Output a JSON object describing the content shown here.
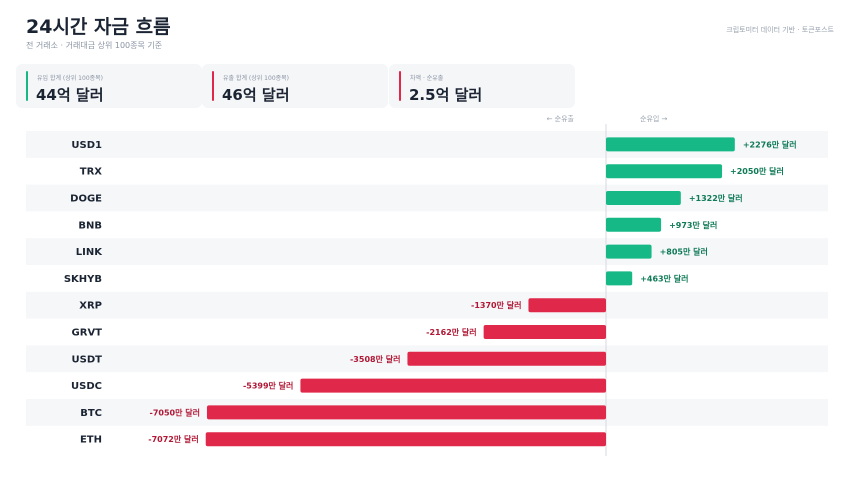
{
  "header": {
    "title": "24시간 자금 흐름",
    "subtitle": "전 거래소 · 거래대금 상위 100종목 기준",
    "source": "크립토미터 데이터 기반 · 토큰포스트"
  },
  "summary": [
    {
      "label": "유입 합계 (상위 100종목)",
      "value": "44억 달러",
      "color": "#16b885"
    },
    {
      "label": "유출 합계 (상위 100종목)",
      "value": "46억 달러",
      "color": "#e0294a"
    },
    {
      "label": "차액 · 순유출",
      "value": "2.5억 달러",
      "color": "#e0294a"
    }
  ],
  "axis": {
    "outflow_label": "← 순유출",
    "inflow_label": "순유입 →"
  },
  "colors": {
    "positive": "#16b885",
    "negative": "#e0294a",
    "positive_text": "#0f7a57",
    "negative_text": "#b01835"
  },
  "chart_data": {
    "type": "bar",
    "orientation": "horizontal",
    "unit": "만 달러",
    "categories": [
      "USD1",
      "TRX",
      "DOGE",
      "BNB",
      "LINK",
      "SKHYB",
      "XRP",
      "GRVT",
      "USDT",
      "USDC",
      "BTC",
      "ETH"
    ],
    "values": [
      2276,
      2050,
      1322,
      973,
      805,
      463,
      -1370,
      -2162,
      -3508,
      -5399,
      -7050,
      -7072
    ],
    "value_labels": [
      "+2276만 달러",
      "+2050만 달러",
      "+1322만 달러",
      "+973만 달러",
      "+805만 달러",
      "+463만 달러",
      "-1370만 달러",
      "-2162만 달러",
      "-3508만 달러",
      "-5399만 달러",
      "-7050만 달러",
      "-7072만 달러"
    ]
  }
}
